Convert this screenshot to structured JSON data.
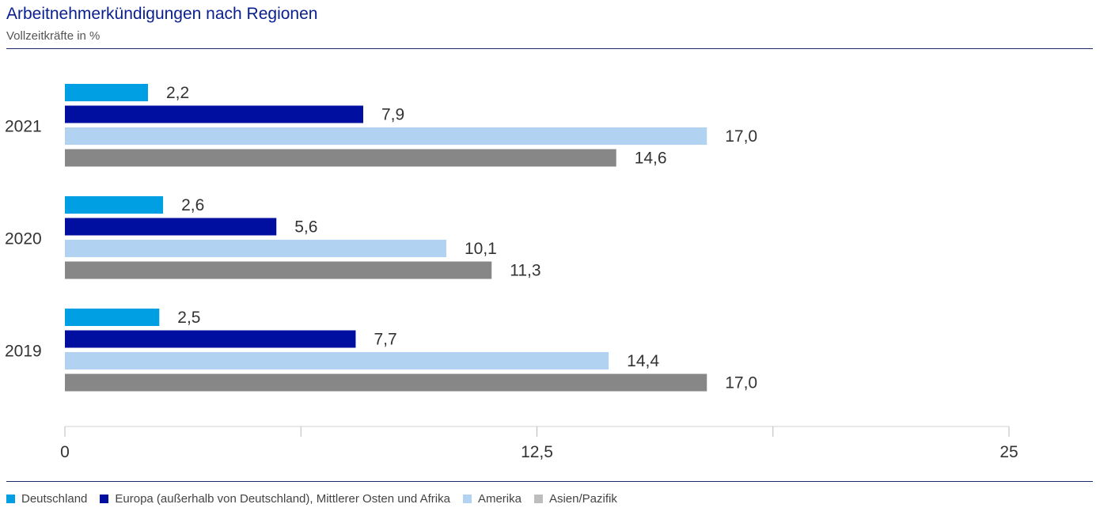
{
  "chart_data": {
    "type": "bar",
    "orientation": "horizontal",
    "title": "Arbeitnehmerkündigungen nach Regionen",
    "subtitle": "Vollzeitkräfte in %",
    "categories": [
      "2021",
      "2020",
      "2019"
    ],
    "series": [
      {
        "name": "Deutschland",
        "color": "#009fe3",
        "values": [
          2.2,
          2.6,
          2.5
        ],
        "labels": [
          "2,2",
          "2,6",
          "2,5"
        ]
      },
      {
        "name": "Europa (außerhalb von Deutschland), Mittlerer Osten und Afrika",
        "color": "#000f9f",
        "values": [
          7.9,
          5.6,
          7.7
        ],
        "labels": [
          "7,9",
          "5,6",
          "7,7"
        ]
      },
      {
        "name": "Amerika",
        "color": "#b1d3f1",
        "values": [
          17.0,
          10.1,
          14.4
        ],
        "labels": [
          "17,0",
          "10,1",
          "14,4"
        ]
      },
      {
        "name": "Asien/Pazifik",
        "color": "#878787",
        "legend_color": "#bdbdbd",
        "values": [
          14.6,
          11.3,
          17.0
        ],
        "labels": [
          "14,6",
          "11,3",
          "17,0"
        ]
      }
    ],
    "xlim": [
      0,
      25
    ],
    "ticks": [
      0,
      12.5,
      25
    ],
    "tick_labels": [
      "0",
      "12,5",
      "25"
    ],
    "grid": false,
    "legend_position": "bottom"
  }
}
